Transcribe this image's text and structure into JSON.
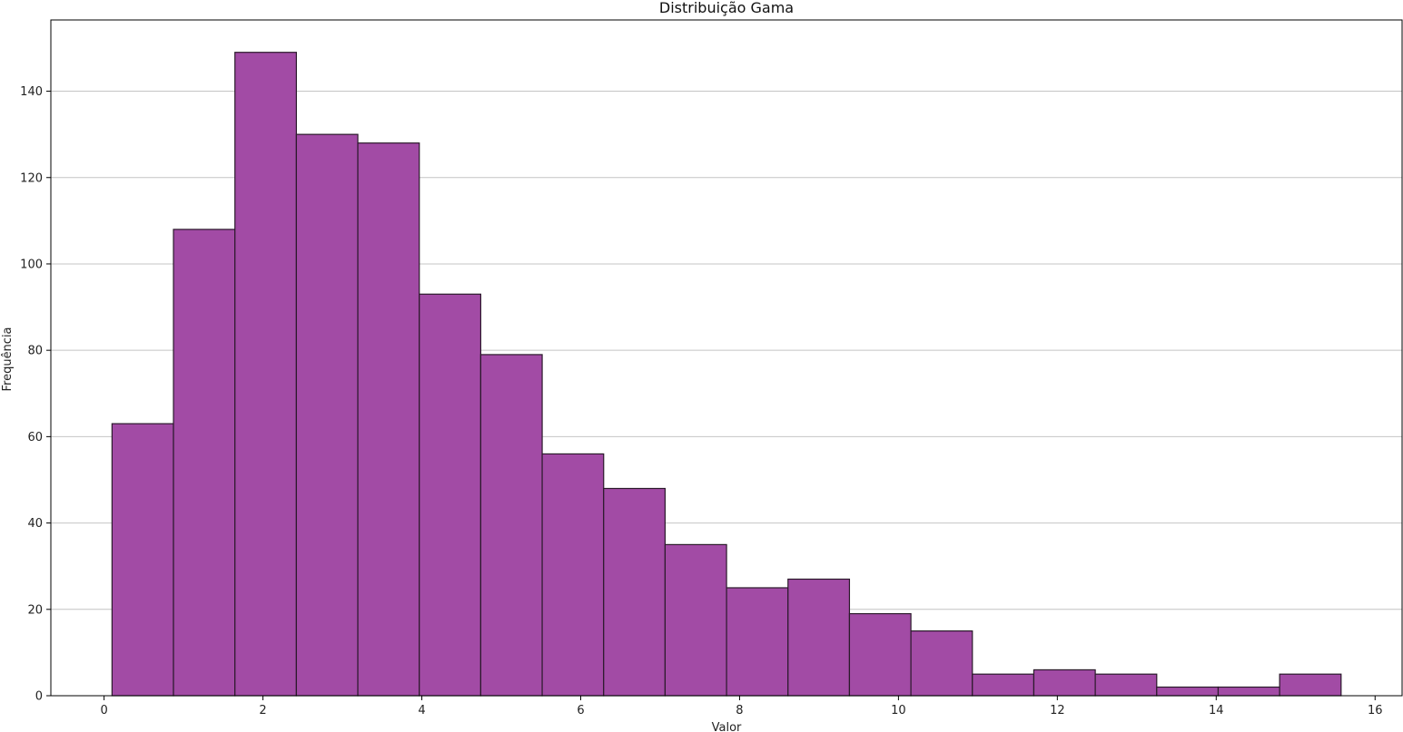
{
  "chart_data": {
    "type": "bar",
    "title": "Distribuição Gama",
    "xlabel": "Valor",
    "ylabel": "Frequência",
    "bin_edges": [
      0.1,
      0.8736,
      1.6472,
      2.4208,
      3.1944,
      3.968,
      4.7416,
      5.5152,
      6.2888,
      7.0624,
      7.836,
      8.6096,
      9.3832,
      10.1568,
      10.9304,
      11.704,
      12.4776,
      13.2512,
      14.0248,
      14.7984,
      15.572
    ],
    "values": [
      63,
      108,
      149,
      130,
      128,
      93,
      79,
      56,
      48,
      35,
      25,
      27,
      19,
      15,
      5,
      6,
      5,
      2,
      2,
      5
    ],
    "xlim": [
      -0.67,
      16.34
    ],
    "ylim": [
      0,
      156.5
    ],
    "xticks": [
      0,
      2,
      4,
      6,
      8,
      10,
      12,
      14,
      16
    ],
    "yticks": [
      0,
      20,
      40,
      60,
      80,
      100,
      120,
      140
    ],
    "grid": "y",
    "bar_color": "#a24ba5",
    "edge_color": "#2b1a2b"
  }
}
